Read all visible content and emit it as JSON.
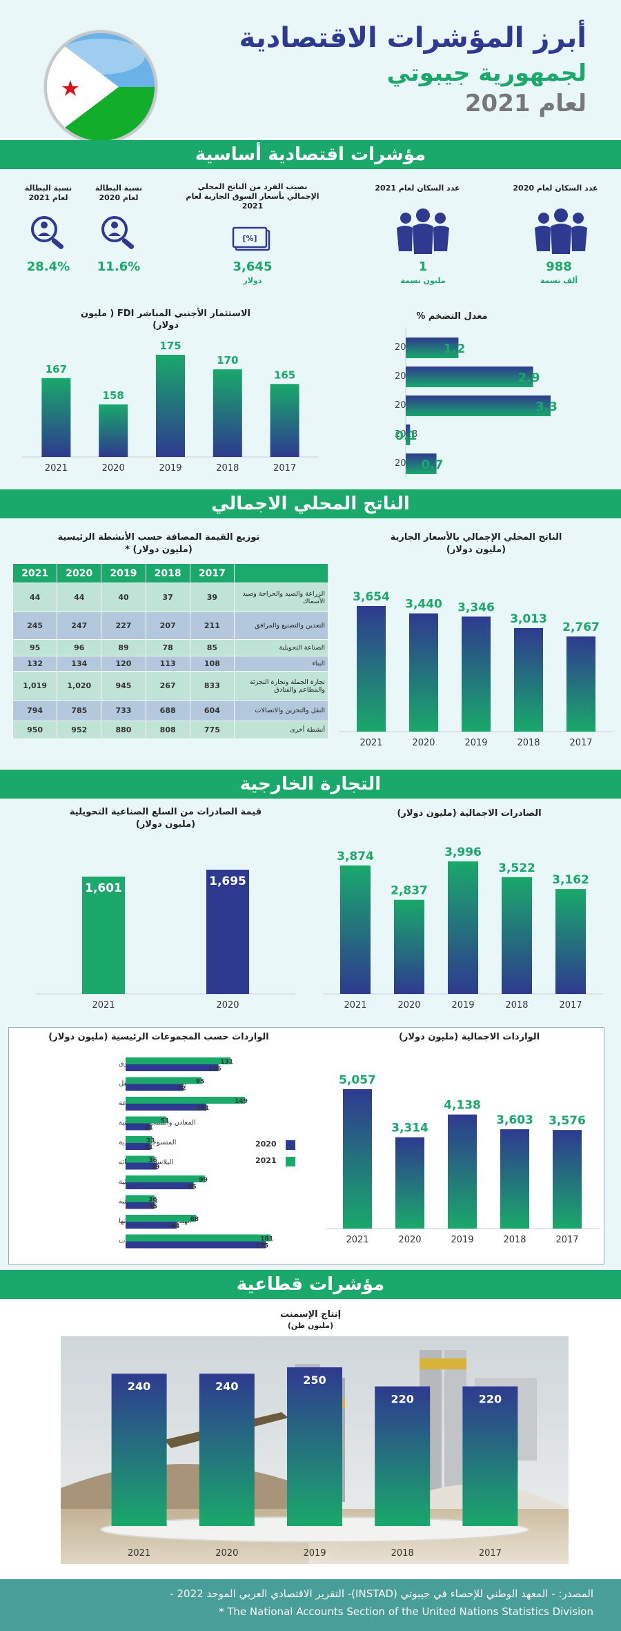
{
  "header": {
    "title": "أبرز المؤشرات الاقتصادية",
    "subtitle": "لجمهورية جيبوتي",
    "year": "لعام 2021"
  },
  "sections": {
    "basic": "مؤشرات اقتصادية أساسية",
    "gdp": "الناتج المحلي الاجمالي",
    "trade": "التجارة الخارجية",
    "sectoral": "مؤشرات قطاعية"
  },
  "kpis": [
    {
      "label": "عدد السكان لعام 2020",
      "value": "988",
      "unit": "ألف نسمة",
      "icon": "population-icon"
    },
    {
      "label": "عدد السكان لعام 2021",
      "value": "1",
      "unit": "مليون نسمة",
      "icon": "population-icon"
    },
    {
      "label": "نصيب الفرد من الناتج المحلي الإجمالي بأسعار السوق الجارية لعام 2021",
      "value": "3,645",
      "unit": "دولار",
      "icon": "money-icon"
    },
    {
      "label": "نسبة البطالة لعام 2020",
      "value": "11.6%",
      "unit": "",
      "icon": "job-search-icon"
    },
    {
      "label": "نسبة البطالة لعام 2021",
      "value": "28.4%",
      "unit": "",
      "icon": "job-search-icon"
    }
  ],
  "table": {
    "title": "توزيع القيمة المضافة حسب الأنشطة الرئيسية",
    "subtitle": "(مليون دولار) *",
    "headers": [
      "2021",
      "2020",
      "2019",
      "2018",
      "2017"
    ],
    "rows": [
      {
        "label": "الزراعة والصيد والحراجة وصيد الأسماك",
        "values": [
          "44",
          "44",
          "40",
          "37",
          "39"
        ]
      },
      {
        "label": "التعدين والتصنيع والمرافق",
        "values": [
          "245",
          "247",
          "227",
          "207",
          "211"
        ]
      },
      {
        "label": "الصناعة التحويلية",
        "values": [
          "95",
          "96",
          "89",
          "78",
          "85"
        ]
      },
      {
        "label": "البناء",
        "values": [
          "132",
          "134",
          "120",
          "113",
          "108"
        ]
      },
      {
        "label": "تجارة الجملة وتجارة التجزئة والمطاعم والفنادق",
        "values": [
          "1,019",
          "1,020",
          "945",
          "267",
          "833"
        ]
      },
      {
        "label": "النقل والتخزين والاتصالات",
        "values": [
          "794",
          "785",
          "733",
          "688",
          "604"
        ]
      },
      {
        "label": "أنشطة أخرى",
        "values": [
          "950",
          "952",
          "880",
          "808",
          "775"
        ]
      }
    ]
  },
  "legend": {
    "y2020": "2020",
    "y2021": "2021"
  },
  "footer": {
    "line1": "المصدر: - المعهد الوطني للإحصاء في جيبوتي (INSTAD)- التقرير الاقتصادي العربي الموحد 2022 -",
    "line2": "* The National Accounts Section of the United Nations Statistics Division"
  },
  "colors": {
    "green": "#1aa86b",
    "navy": "#2e3a8f",
    "banner": "#1aa86b",
    "footer": "#4a9e99"
  },
  "chart_data": [
    {
      "id": "inflation",
      "type": "bar",
      "orientation": "horizontal",
      "title": "معدل التضخم %",
      "categories": [
        "2021",
        "2020",
        "2019",
        "2018",
        "2017"
      ],
      "values": [
        1.2,
        2.9,
        3.3,
        0.1,
        0.7
      ],
      "labels": [
        "1.2",
        "2.9",
        "3.3",
        "0.1",
        "0.7"
      ]
    },
    {
      "id": "fdi",
      "type": "bar",
      "title": "الاستثمار الأجنبي المباشر FDI ( مليون دولار)",
      "categories": [
        "2021",
        "2020",
        "2019",
        "2018",
        "2017"
      ],
      "values": [
        167,
        158,
        175,
        170,
        165
      ],
      "labels": [
        "167",
        "158",
        "175",
        "170",
        "165"
      ]
    },
    {
      "id": "gdp",
      "type": "bar",
      "title": "الناتج المحلي الإجمالي بالأسعار الجارية",
      "subtitle": "(مليون دولار)",
      "categories": [
        "2021",
        "2020",
        "2019",
        "2018",
        "2017"
      ],
      "values": [
        3654,
        3440,
        3346,
        3013,
        2767
      ],
      "labels": [
        "3,654",
        "3,440",
        "3,346",
        "3,013",
        "2,767"
      ]
    },
    {
      "id": "manuf_exports",
      "type": "bar",
      "title": "قيمة الصادرات من السلع الصناعية التحويلية",
      "subtitle": "(مليون دولار)",
      "categories": [
        "2021",
        "2020"
      ],
      "values": [
        1601,
        1695
      ],
      "labels": [
        "1,601",
        "1,695"
      ]
    },
    {
      "id": "exports",
      "type": "bar",
      "title": "الصادرات الاجمالية (مليون دولار)",
      "categories": [
        "2021",
        "2020",
        "2019",
        "2018",
        "2017"
      ],
      "values": [
        3874,
        2837,
        3996,
        3522,
        3162
      ],
      "labels": [
        "3,874",
        "2,837",
        "3,996",
        "3,522",
        "3,162"
      ]
    },
    {
      "id": "imports_groups",
      "type": "bar",
      "orientation": "horizontal",
      "title": "الواردات حسب المجموعات الرئيسية (مليون دولار)",
      "categories": [
        "أخرى",
        "المركبات ومعدات النقل",
        "الآت وأجهزة كهربائية متنوعة",
        "المعادن والمنتجات المعدنية",
        "المنسوجات والأحذية",
        "البلاستيك ومشتقاته",
        "المواد الكيميائية",
        "طاقة كهربائية",
        "الهيدروكربونات ومشتقاتها",
        "مواد غذائية ومشروبات"
      ],
      "series": [
        {
          "name": "2021",
          "values": [
            131,
            95,
            149,
            51,
            33,
            36,
            99,
            36,
            88,
            181
          ]
        },
        {
          "name": "2020",
          "values": [
            116,
            72,
            101,
            31,
            31,
            39,
            85,
            36,
            64,
            175
          ]
        }
      ]
    },
    {
      "id": "imports",
      "type": "bar",
      "title": "الواردات الاجمالية (مليون دولار)",
      "categories": [
        "2021",
        "2020",
        "2019",
        "2018",
        "2017"
      ],
      "values": [
        5057,
        3314,
        4138,
        3603,
        3576
      ],
      "labels": [
        "5,057",
        "3,314",
        "4,138",
        "3,603",
        "3,576"
      ]
    },
    {
      "id": "cement",
      "type": "bar",
      "title": "إنتاج الإسمنت",
      "subtitle": "(مليون طن)",
      "categories": [
        "2021",
        "2020",
        "2019",
        "2018",
        "2017"
      ],
      "values": [
        240,
        240,
        250,
        220,
        220
      ],
      "labels": [
        "240",
        "240",
        "250",
        "220",
        "220"
      ]
    }
  ]
}
